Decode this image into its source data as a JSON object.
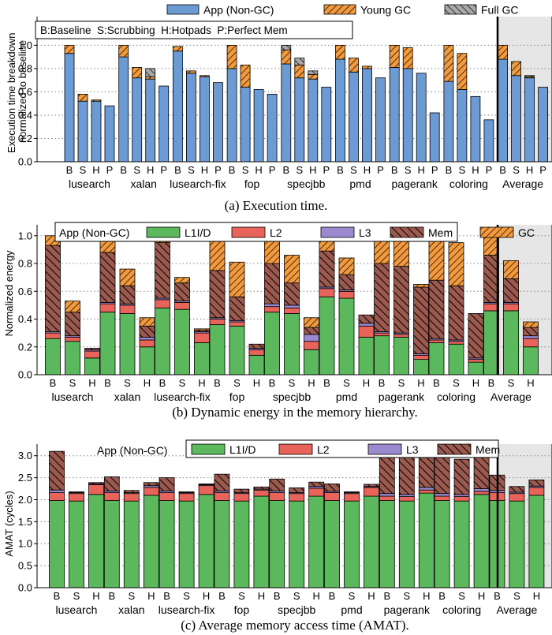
{
  "colors": {
    "app": "#6b9bd2",
    "young_gc": "#f39a3c",
    "full_gc": "#a9a9a9",
    "l1": "#5cb85c",
    "l2": "#e8645a",
    "l3": "#9b8ad0",
    "mem": "#9c5a4f",
    "gc": "#f39a3c",
    "avg_bg": "#e6e6e6"
  },
  "chart_data": [
    {
      "type": "bar",
      "caption": "(a) Execution time.",
      "ylabel": "Execution time breakdown normalized to baseline",
      "ylabel_lines": [
        "Execution time breakdown",
        "normalized to baseline"
      ],
      "ylim": [
        0,
        1.05
      ],
      "yticks": [
        "0.0",
        "0.2",
        "0.4",
        "0.6",
        "0.8",
        "1.0"
      ],
      "annotation": "B:Baseline  S:Scrubbing  H:Hotpads  P:Perfect Mem",
      "legend": [
        "App (Non-GC)",
        "Young GC",
        "Full GC"
      ],
      "bar_labels": [
        "B",
        "S",
        "H",
        "P"
      ],
      "groups": [
        "lusearch",
        "xalan",
        "lusearch-fix",
        "fop",
        "specjbb",
        "pmd",
        "pagerank",
        "coloring",
        "Average"
      ],
      "series": [
        {
          "name": "App (Non-GC)",
          "values": [
            [
              0.93,
              0.52,
              0.52,
              0.48
            ],
            [
              0.9,
              0.72,
              0.71,
              0.65
            ],
            [
              0.95,
              0.76,
              0.73,
              0.68
            ],
            [
              0.8,
              0.64,
              0.62,
              0.58
            ],
            [
              0.84,
              0.72,
              0.71,
              0.64
            ],
            [
              0.88,
              0.77,
              0.8,
              0.72
            ],
            [
              0.81,
              0.8,
              0.76,
              0.42
            ],
            [
              0.69,
              0.62,
              0.56,
              0.36
            ],
            [
              0.88,
              0.74,
              0.72,
              0.64
            ]
          ]
        },
        {
          "name": "Young GC",
          "values": [
            [
              0.07,
              0.06,
              0.01,
              0
            ],
            [
              0.1,
              0.09,
              0.02,
              0
            ],
            [
              0.04,
              0.02,
              0.01,
              0
            ],
            [
              0.2,
              0.19,
              0,
              0
            ],
            [
              0.12,
              0.11,
              0.04,
              0
            ],
            [
              0.12,
              0.12,
              0.02,
              0
            ],
            [
              0.19,
              0.18,
              0,
              0
            ],
            [
              0.31,
              0.31,
              0,
              0
            ],
            [
              0.12,
              0.12,
              0.01,
              0
            ]
          ]
        },
        {
          "name": "Full GC",
          "values": [
            [
              0,
              0,
              0,
              0
            ],
            [
              0,
              0,
              0.07,
              0
            ],
            [
              0,
              0,
              0,
              0
            ],
            [
              0,
              0,
              0,
              0
            ],
            [
              0.04,
              0.06,
              0.03,
              0
            ],
            [
              0,
              0,
              0,
              0
            ],
            [
              0,
              0,
              0,
              0
            ],
            [
              0,
              0,
              0,
              0
            ],
            [
              0,
              0,
              0.01,
              0
            ]
          ]
        }
      ]
    },
    {
      "type": "bar",
      "caption": "(b) Dynamic energy in the memory hierarchy.",
      "ylabel": "Normalized energy",
      "ylim": [
        0,
        1.05
      ],
      "yticks": [
        "0.0",
        "0.2",
        "0.4",
        "0.6",
        "0.8",
        "1.0"
      ],
      "legend_title": "App (Non-GC)",
      "legend": [
        "L1I/D",
        "L2",
        "L3",
        "Mem",
        "GC"
      ],
      "bar_labels": [
        "B",
        "S",
        "H"
      ],
      "groups": [
        "lusearch",
        "xalan",
        "lusearch-fix",
        "fop",
        "specjbb",
        "pmd",
        "pagerank",
        "coloring",
        "Average"
      ],
      "series": [
        {
          "name": "L1I/D",
          "values": [
            [
              0.26,
              0.24,
              0.12
            ],
            [
              0.45,
              0.44,
              0.2
            ],
            [
              0.48,
              0.47,
              0.23
            ],
            [
              0.36,
              0.35,
              0.14
            ],
            [
              0.45,
              0.44,
              0.18
            ],
            [
              0.56,
              0.55,
              0.27
            ],
            [
              0.28,
              0.27,
              0.11
            ],
            [
              0.23,
              0.22,
              0.09
            ],
            [
              0.46,
              0.46,
              0.2
            ]
          ]
        },
        {
          "name": "L2",
          "values": [
            [
              0.04,
              0.03,
              0.05
            ],
            [
              0.06,
              0.06,
              0.05
            ],
            [
              0.06,
              0.05,
              0.07
            ],
            [
              0.04,
              0.03,
              0.04
            ],
            [
              0.04,
              0.04,
              0.06
            ],
            [
              0.06,
              0.05,
              0.08
            ],
            [
              0.02,
              0.02,
              0.03
            ],
            [
              0.02,
              0.02,
              0.02
            ],
            [
              0.05,
              0.05,
              0.06
            ]
          ]
        },
        {
          "name": "L3",
          "values": [
            [
              0.01,
              0.01,
              0.01
            ],
            [
              0.01,
              0.01,
              0.02
            ],
            [
              0.01,
              0.01,
              0.01
            ],
            [
              0.01,
              0.01,
              0.01
            ],
            [
              0.02,
              0.02,
              0.05
            ],
            [
              0.01,
              0.01,
              0.02
            ],
            [
              0.01,
              0.01,
              0.01
            ],
            [
              0.01,
              0.01,
              0.01
            ],
            [
              0.01,
              0.01,
              0.02
            ]
          ]
        },
        {
          "name": "Mem",
          "values": [
            [
              0.62,
              0.17,
              0.01
            ],
            [
              0.36,
              0.13,
              0.08
            ],
            [
              0.4,
              0.13,
              0.01
            ],
            [
              0.34,
              0.17,
              0.03
            ],
            [
              0.29,
              0.16,
              0.05
            ],
            [
              0.26,
              0.11,
              0.06
            ],
            [
              0.49,
              0.48,
              0.48
            ],
            [
              0.42,
              0.39,
              0.32
            ],
            [
              0.34,
              0.17,
              0.06
            ]
          ]
        },
        {
          "name": "GC",
          "values": [
            [
              0.07,
              0.08,
              0
            ],
            [
              0.12,
              0.12,
              0.06
            ],
            [
              0.05,
              0.04,
              0.01
            ],
            [
              0.25,
              0.25,
              0
            ],
            [
              0.2,
              0.2,
              0.07
            ],
            [
              0.11,
              0.12,
              0
            ],
            [
              0.2,
              0.19,
              0.02
            ],
            [
              0.32,
              0.31,
              0
            ],
            [
              0.14,
              0.13,
              0.04
            ]
          ]
        }
      ]
    },
    {
      "type": "bar",
      "caption": "(c) Average memory access time (AMAT).",
      "ylabel": "AMAT (cycles)",
      "ylim": [
        0,
        3.3
      ],
      "yticks": [
        "0.0",
        "0.5",
        "1.0",
        "1.5",
        "2.0",
        "2.5",
        "3.0"
      ],
      "legend_title": "App (Non-GC)",
      "legend": [
        "L1I/D",
        "L2",
        "L3",
        "Mem"
      ],
      "bar_labels": [
        "B",
        "S",
        "H"
      ],
      "groups": [
        "lusearch",
        "xalan",
        "lusearch-fix",
        "fop",
        "specjbb",
        "pmd",
        "pagerank",
        "coloring",
        "Average"
      ],
      "series": [
        {
          "name": "L1I/D",
          "values": [
            [
              1.98,
              1.97,
              2.12
            ],
            [
              1.98,
              1.97,
              2.1
            ],
            [
              1.98,
              1.97,
              2.12
            ],
            [
              1.98,
              1.97,
              2.08
            ],
            [
              1.98,
              1.97,
              2.08
            ],
            [
              1.98,
              1.97,
              2.08
            ],
            [
              1.98,
              1.97,
              2.15
            ],
            [
              1.98,
              1.97,
              2.12
            ],
            [
              1.98,
              1.97,
              2.1
            ]
          ]
        },
        {
          "name": "L2",
          "values": [
            [
              0.18,
              0.17,
              0.22
            ],
            [
              0.18,
              0.17,
              0.18
            ],
            [
              0.18,
              0.17,
              0.2
            ],
            [
              0.18,
              0.17,
              0.14
            ],
            [
              0.18,
              0.17,
              0.18
            ],
            [
              0.18,
              0.17,
              0.2
            ],
            [
              0.1,
              0.1,
              0.07
            ],
            [
              0.1,
              0.1,
              0.07
            ],
            [
              0.18,
              0.17,
              0.18
            ]
          ]
        },
        {
          "name": "L3",
          "values": [
            [
              0.06,
              0.02,
              0.02
            ],
            [
              0.04,
              0.02,
              0.04
            ],
            [
              0.04,
              0.02,
              0.02
            ],
            [
              0.04,
              0.02,
              0.02
            ],
            [
              0.04,
              0.02,
              0.04
            ],
            [
              0.03,
              0.02,
              0.02
            ],
            [
              0.06,
              0.05,
              0.06
            ],
            [
              0.06,
              0.05,
              0.06
            ],
            [
              0.05,
              0.03,
              0.03
            ]
          ]
        },
        {
          "name": "Mem",
          "values": [
            [
              0.88,
              0.02,
              0.03
            ],
            [
              0.32,
              0.05,
              0.07
            ],
            [
              0.3,
              0.02,
              0.02
            ],
            [
              0.38,
              0.08,
              0.05
            ],
            [
              0.27,
              0.11,
              0.1
            ],
            [
              0.17,
              0.02,
              0.05
            ],
            [
              0.98,
              0.98,
              1.0
            ],
            [
              0.92,
              0.8,
              0.85
            ],
            [
              0.35,
              0.13,
              0.14
            ]
          ]
        }
      ]
    }
  ]
}
